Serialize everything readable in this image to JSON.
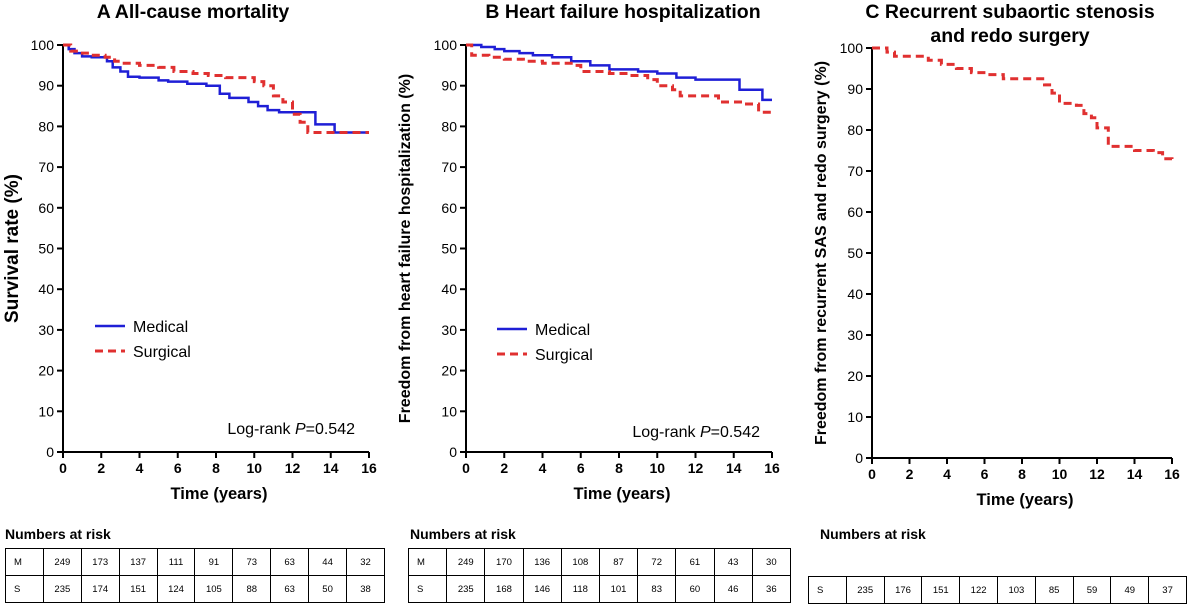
{
  "chart_data": [
    {
      "type": "line",
      "panel_letter": "A",
      "title": "All-cause mortality",
      "title_line2": "",
      "xlabel": "Time (years)",
      "ylabel": "Survival rate  (%)",
      "xlim": [
        0,
        16
      ],
      "ylim": [
        0,
        100
      ],
      "xticks": [
        0,
        2,
        4,
        6,
        8,
        10,
        12,
        14,
        16
      ],
      "yticks": [
        0,
        10,
        20,
        30,
        40,
        50,
        60,
        70,
        80,
        90,
        100
      ],
      "legend": [
        "Medical",
        "Surgical"
      ],
      "annotation_prefix": "Log-rank ",
      "annotation_italic": "P",
      "annotation_suffix": "=0.542",
      "series": [
        {
          "name": "Medical",
          "color": "#1f1fd6",
          "style": "solid",
          "x": [
            0,
            0.3,
            0.6,
            1.0,
            1.5,
            2.0,
            2.3,
            2.6,
            3.0,
            3.4,
            4.0,
            5.0,
            5.5,
            6.5,
            7.5,
            8.2,
            8.7,
            9.7,
            10.2,
            10.7,
            11.3,
            12.0,
            13.2,
            13.7,
            14.2,
            14.8,
            16
          ],
          "y": [
            100,
            99,
            98,
            97.2,
            97,
            97,
            96,
            94.5,
            93.5,
            92.2,
            92,
            91.3,
            91,
            90.5,
            90,
            88,
            87,
            86,
            85,
            84,
            83.5,
            83.5,
            80.5,
            80.5,
            78.5,
            78.5,
            78.5
          ]
        },
        {
          "name": "Surgical",
          "color": "#e03030",
          "style": "dashed",
          "x": [
            0,
            0.4,
            0.9,
            1.5,
            2.2,
            2.7,
            3.2,
            4.0,
            5.0,
            5.8,
            6.8,
            7.6,
            8.5,
            9.5,
            10.0,
            10.5,
            11.0,
            11.5,
            12.0,
            12.4,
            12.8,
            13.3,
            14.0,
            16
          ],
          "y": [
            100,
            98.5,
            98,
            97.5,
            97,
            96,
            95.5,
            95,
            94.5,
            93.5,
            93,
            92.5,
            92,
            92,
            91,
            90,
            87.5,
            86,
            83,
            81,
            78.5,
            78.5,
            78.5,
            78.5
          ]
        }
      ],
      "risk_table": {
        "title": "Numbers at risk",
        "rows": [
          {
            "label": "M",
            "values": [
              "249",
              "173",
              "137",
              "111",
              "91",
              "73",
              "63",
              "44",
              "32"
            ]
          },
          {
            "label": "S",
            "values": [
              "235",
              "174",
              "151",
              "124",
              "105",
              "88",
              "63",
              "50",
              "38"
            ]
          }
        ]
      }
    },
    {
      "type": "line",
      "panel_letter": "B",
      "title": "Heart failure hospitalization",
      "title_line2": "",
      "xlabel": "Time (years)",
      "ylabel": "Freedom from heart failure hospitalization (%)",
      "xlim": [
        0,
        16
      ],
      "ylim": [
        0,
        100
      ],
      "xticks": [
        0,
        2,
        4,
        6,
        8,
        10,
        12,
        14,
        16
      ],
      "yticks": [
        0,
        10,
        20,
        30,
        40,
        50,
        60,
        70,
        80,
        90,
        100
      ],
      "legend": [
        "Medical",
        "Surgical"
      ],
      "annotation_prefix": "Log-rank ",
      "annotation_italic": "P",
      "annotation_suffix": "=0.542",
      "series": [
        {
          "name": "Medical",
          "color": "#1f1fd6",
          "style": "solid",
          "x": [
            0,
            0.8,
            1.5,
            2.0,
            2.8,
            3.5,
            4.5,
            5.5,
            6.5,
            7.5,
            9.0,
            10.0,
            11.0,
            12.0,
            13.5,
            14.3,
            15.5,
            16
          ],
          "y": [
            100,
            99.5,
            99,
            98.5,
            98,
            97.5,
            97,
            96,
            95,
            94,
            93.5,
            93,
            92,
            91.5,
            91.5,
            89,
            86.5,
            86.5
          ]
        },
        {
          "name": "Surgical",
          "color": "#e03030",
          "style": "dashed",
          "x": [
            0,
            0.3,
            1.2,
            2.0,
            3.0,
            4.0,
            5.5,
            6.0,
            7.5,
            8.5,
            9.5,
            10.0,
            10.8,
            11.2,
            12.0,
            13.2,
            14.5,
            15.3,
            16
          ],
          "y": [
            100,
            97.5,
            97,
            96.5,
            96,
            95.5,
            95,
            93.5,
            93,
            92.5,
            91.5,
            90,
            89,
            87.5,
            87.5,
            86,
            85.5,
            83.5,
            83.5
          ]
        }
      ],
      "risk_table": {
        "title": "Numbers at risk",
        "rows": [
          {
            "label": "M",
            "values": [
              "249",
              "170",
              "136",
              "108",
              "87",
              "72",
              "61",
              "43",
              "30"
            ]
          },
          {
            "label": "S",
            "values": [
              "235",
              "168",
              "146",
              "118",
              "101",
              "83",
              "60",
              "46",
              "36"
            ]
          }
        ]
      }
    },
    {
      "type": "line",
      "panel_letter": "C",
      "title": "Recurrent subaortic stenosis",
      "title_line2": "and redo surgery",
      "xlabel": "Time (years)",
      "ylabel": "Freedom from recurrent SAS and redo surgery (%)",
      "xlim": [
        0,
        16
      ],
      "ylim": [
        0,
        100
      ],
      "xticks": [
        0,
        2,
        4,
        6,
        8,
        10,
        12,
        14,
        16
      ],
      "yticks": [
        0,
        10,
        20,
        30,
        40,
        50,
        60,
        70,
        80,
        90,
        100
      ],
      "legend": [],
      "annotation_prefix": "",
      "annotation_italic": "",
      "annotation_suffix": "",
      "series": [
        {
          "name": "Surgical",
          "color": "#e03030",
          "style": "dashed",
          "x": [
            0,
            0.8,
            1.2,
            2.3,
            3.0,
            3.7,
            4.5,
            5.3,
            6.2,
            7.0,
            8.5,
            9.2,
            9.6,
            10.0,
            10.4,
            10.9,
            11.3,
            11.7,
            12.0,
            12.6,
            13.0,
            14.0,
            15.0,
            15.5,
            16
          ],
          "y": [
            100,
            99,
            98,
            98,
            97,
            96,
            95,
            94,
            93.5,
            92.5,
            92.5,
            91,
            89,
            86.5,
            86.5,
            86,
            84,
            83,
            80.5,
            76,
            76,
            75,
            74.5,
            73,
            72.5
          ]
        }
      ],
      "risk_table": {
        "title": "Numbers at risk",
        "rows": [
          {
            "label": "S",
            "values": [
              "235",
              "176",
              "151",
              "122",
              "103",
              "85",
              "59",
              "49",
              "37"
            ]
          }
        ]
      }
    }
  ]
}
